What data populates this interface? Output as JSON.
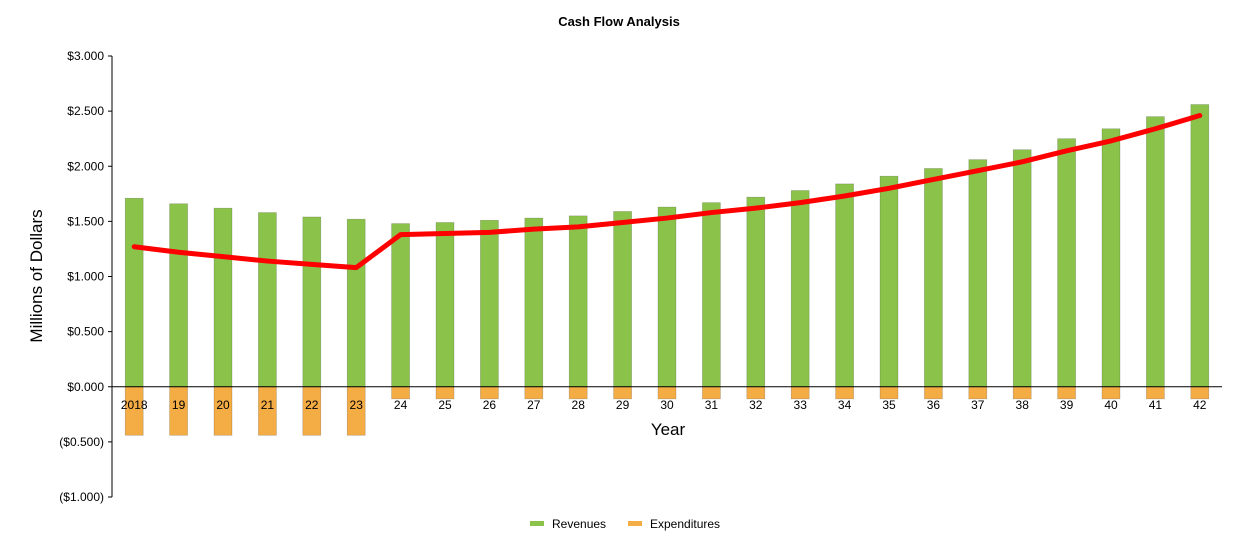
{
  "chart_data": {
    "type": "bar",
    "title": "Cash Flow Analysis",
    "xlabel": "Year",
    "ylabel": "Millions of Dollars",
    "ylim": [
      -1.0,
      3.0
    ],
    "yticks": [
      {
        "value": 3.0,
        "label": "$3.000"
      },
      {
        "value": 2.5,
        "label": "$2.500"
      },
      {
        "value": 2.0,
        "label": "$2.000"
      },
      {
        "value": 1.5,
        "label": "$1.500"
      },
      {
        "value": 1.0,
        "label": "$1.000"
      },
      {
        "value": 0.5,
        "label": "$0.500"
      },
      {
        "value": 0.0,
        "label": "$0.000"
      },
      {
        "value": -0.5,
        "label": "($0.500)"
      },
      {
        "value": -1.0,
        "label": "($1.000)"
      }
    ],
    "grid": false,
    "legend_position": "bottom",
    "categories": [
      "2018",
      "19",
      "20",
      "21",
      "22",
      "23",
      "24",
      "25",
      "26",
      "27",
      "28",
      "29",
      "30",
      "31",
      "32",
      "33",
      "34",
      "35",
      "36",
      "37",
      "38",
      "39",
      "40",
      "41",
      "42"
    ],
    "series": [
      {
        "name": "Revenues",
        "kind": "bar",
        "color": "#8bc34a",
        "values": [
          1.71,
          1.66,
          1.62,
          1.58,
          1.54,
          1.52,
          1.48,
          1.49,
          1.51,
          1.53,
          1.55,
          1.59,
          1.63,
          1.67,
          1.72,
          1.78,
          1.84,
          1.91,
          1.98,
          2.06,
          2.15,
          2.25,
          2.34,
          2.45,
          2.56
        ]
      },
      {
        "name": "Expenditures",
        "kind": "bar",
        "color": "#f4ac45",
        "values": [
          -0.44,
          -0.44,
          -0.44,
          -0.44,
          -0.44,
          -0.44,
          -0.11,
          -0.11,
          -0.11,
          -0.11,
          -0.11,
          -0.11,
          -0.11,
          -0.11,
          -0.11,
          -0.11,
          -0.11,
          -0.11,
          -0.11,
          -0.11,
          -0.11,
          -0.11,
          -0.11,
          -0.11,
          -0.11
        ]
      },
      {
        "kind": "line",
        "color": "#ff0000",
        "values": [
          1.27,
          1.22,
          1.18,
          1.14,
          1.11,
          1.08,
          1.38,
          1.39,
          1.4,
          1.43,
          1.45,
          1.49,
          1.53,
          1.58,
          1.62,
          1.67,
          1.73,
          1.8,
          1.88,
          1.96,
          2.04,
          2.14,
          2.23,
          2.34,
          2.46
        ]
      }
    ]
  }
}
